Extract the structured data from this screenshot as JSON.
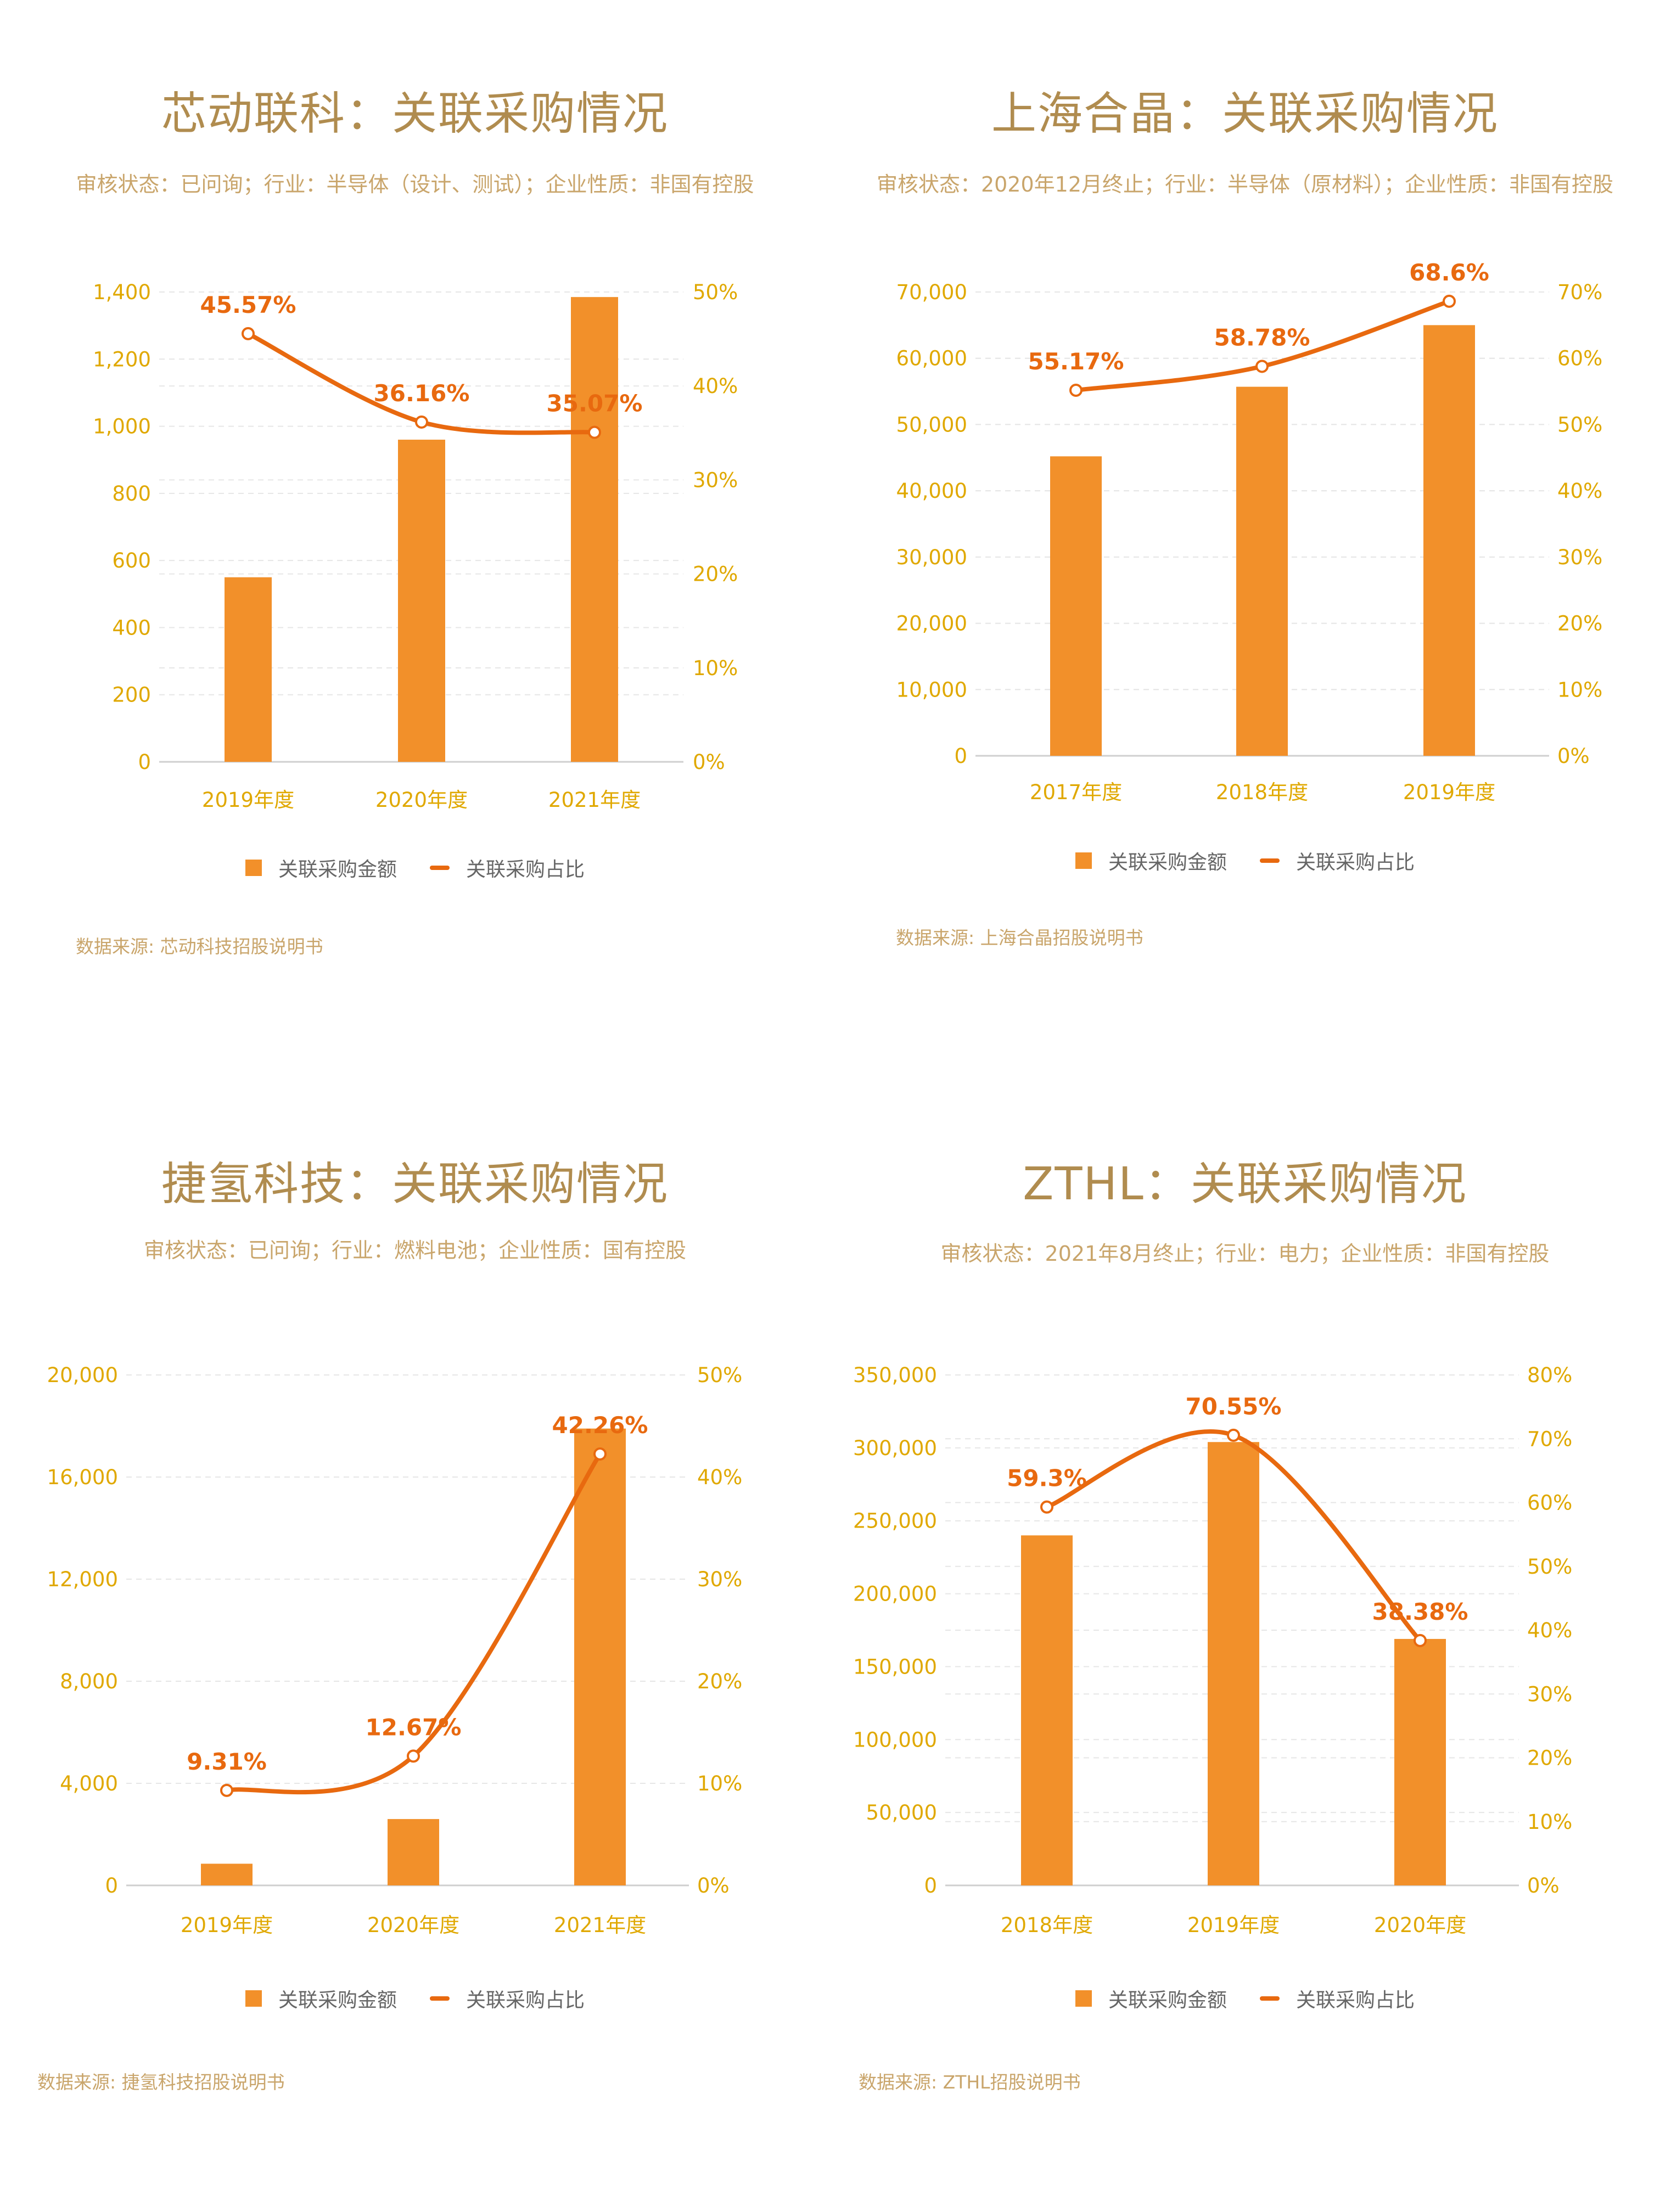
{
  "colors": {
    "bar": "#F2902A",
    "line": "#E8690F",
    "axis_text": "#E0A800",
    "title": "#B08C4F",
    "subtitle": "#C9A56B",
    "grid": "#E6E6E6"
  },
  "legend": {
    "bar_label": "关联采购金额",
    "line_label": "关联采购占比"
  },
  "panels": [
    {
      "title": "芯动联科：关联采购情况",
      "subtitle": "审核状态：已问询；行业：半导体（设计、测试）；企业性质：非国有控股",
      "source": "数据来源: 芯动科技招股说明书"
    },
    {
      "title": "上海合晶：关联采购情况",
      "subtitle": "审核状态：2020年12月终止；行业：半导体（原材料）；企业性质：非国有控股",
      "source": "数据来源: 上海合晶招股说明书"
    },
    {
      "title": "捷氢科技：关联采购情况",
      "subtitle": "审核状态：已问询；行业：燃料电池；企业性质：国有控股",
      "source": "数据来源: 捷氢科技招股说明书"
    },
    {
      "title": "ZTHL：关联采购情况",
      "subtitle": "审核状态：2021年8月终止；行业：电力；企业性质：非国有控股",
      "source": "数据来源: ZTHL招股说明书"
    }
  ],
  "chart_data": [
    {
      "type": "bar",
      "title": "芯动联科：关联采购情况",
      "categories": [
        "2019年度",
        "2020年度",
        "2021年度"
      ],
      "series": [
        {
          "name": "关联采购金额",
          "type": "bar",
          "axis": "left",
          "values": [
            550,
            960,
            1385
          ]
        },
        {
          "name": "关联采购占比",
          "type": "line",
          "axis": "right",
          "values": [
            45.57,
            36.16,
            35.07
          ],
          "labels": [
            "45.57%",
            "36.16%",
            "35.07%"
          ]
        }
      ],
      "ylim_left": [
        0,
        1400
      ],
      "yticks_left": [
        0,
        200,
        400,
        600,
        800,
        1000,
        1200,
        1400
      ],
      "ytick_labels_left": [
        "0",
        "200",
        "400",
        "600",
        "800",
        "1,000",
        "1,200",
        "1,400"
      ],
      "ylim_right": [
        0,
        50
      ],
      "yticks_right": [
        0,
        10,
        20,
        30,
        40,
        50
      ],
      "ytick_labels_right": [
        "0%",
        "10%",
        "20%",
        "30%",
        "40%",
        "50%"
      ],
      "grid": true,
      "legend": "bottom"
    },
    {
      "type": "bar",
      "title": "上海合晶：关联采购情况",
      "categories": [
        "2017年度",
        "2018年度",
        "2019年度"
      ],
      "series": [
        {
          "name": "关联采购金额",
          "type": "bar",
          "axis": "left",
          "values": [
            45200,
            55700,
            65000
          ]
        },
        {
          "name": "关联采购占比",
          "type": "line",
          "axis": "right",
          "values": [
            55.17,
            58.78,
            68.6
          ],
          "labels": [
            "55.17%",
            "58.78%",
            "68.6%"
          ]
        }
      ],
      "ylim_left": [
        0,
        70000
      ],
      "yticks_left": [
        0,
        10000,
        20000,
        30000,
        40000,
        50000,
        60000,
        70000
      ],
      "ytick_labels_left": [
        "0",
        "10,000",
        "20,000",
        "30,000",
        "40,000",
        "50,000",
        "60,000",
        "70,000"
      ],
      "ylim_right": [
        0,
        70
      ],
      "yticks_right": [
        0,
        10,
        20,
        30,
        40,
        50,
        60,
        70
      ],
      "ytick_labels_right": [
        "0%",
        "10%",
        "20%",
        "30%",
        "40%",
        "50%",
        "60%",
        "70%"
      ],
      "grid": true,
      "legend": "bottom"
    },
    {
      "type": "bar",
      "title": "捷氢科技：关联采购情况",
      "categories": [
        "2019年度",
        "2020年度",
        "2021年度"
      ],
      "series": [
        {
          "name": "关联采购金额",
          "type": "bar",
          "axis": "left",
          "values": [
            850,
            2600,
            17900
          ]
        },
        {
          "name": "关联采购占比",
          "type": "line",
          "axis": "right",
          "values": [
            9.31,
            12.67,
            42.26
          ],
          "labels": [
            "9.31%",
            "12.67%",
            "42.26%"
          ]
        }
      ],
      "ylim_left": [
        0,
        20000
      ],
      "yticks_left": [
        0,
        4000,
        8000,
        12000,
        16000,
        20000
      ],
      "ytick_labels_left": [
        "0",
        "4,000",
        "8,000",
        "12,000",
        "16,000",
        "20,000"
      ],
      "ylim_right": [
        0,
        50
      ],
      "yticks_right": [
        0,
        10,
        20,
        30,
        40,
        50
      ],
      "ytick_labels_right": [
        "0%",
        "10%",
        "20%",
        "30%",
        "40%",
        "50%"
      ],
      "grid": true,
      "legend": "bottom"
    },
    {
      "type": "bar",
      "title": "ZTHL：关联采购情况",
      "categories": [
        "2018年度",
        "2019年度",
        "2020年度"
      ],
      "series": [
        {
          "name": "关联采购金额",
          "type": "bar",
          "axis": "left",
          "values": [
            240000,
            304000,
            169000
          ]
        },
        {
          "name": "关联采购占比",
          "type": "line",
          "axis": "right",
          "values": [
            59.3,
            70.55,
            38.38
          ],
          "labels": [
            "59.3%",
            "70.55%",
            "38.38%"
          ]
        }
      ],
      "ylim_left": [
        0,
        350000
      ],
      "yticks_left": [
        0,
        50000,
        100000,
        150000,
        200000,
        250000,
        300000,
        350000
      ],
      "ytick_labels_left": [
        "0",
        "50,000",
        "100,000",
        "150,000",
        "200,000",
        "250,000",
        "300,000",
        "350,000"
      ],
      "ylim_right": [
        0,
        80
      ],
      "yticks_right": [
        0,
        10,
        20,
        30,
        40,
        50,
        60,
        70,
        80
      ],
      "ytick_labels_right": [
        "0%",
        "10%",
        "20%",
        "30%",
        "40%",
        "50%",
        "60%",
        "70%",
        "80%"
      ],
      "grid": true,
      "legend": "bottom"
    }
  ]
}
